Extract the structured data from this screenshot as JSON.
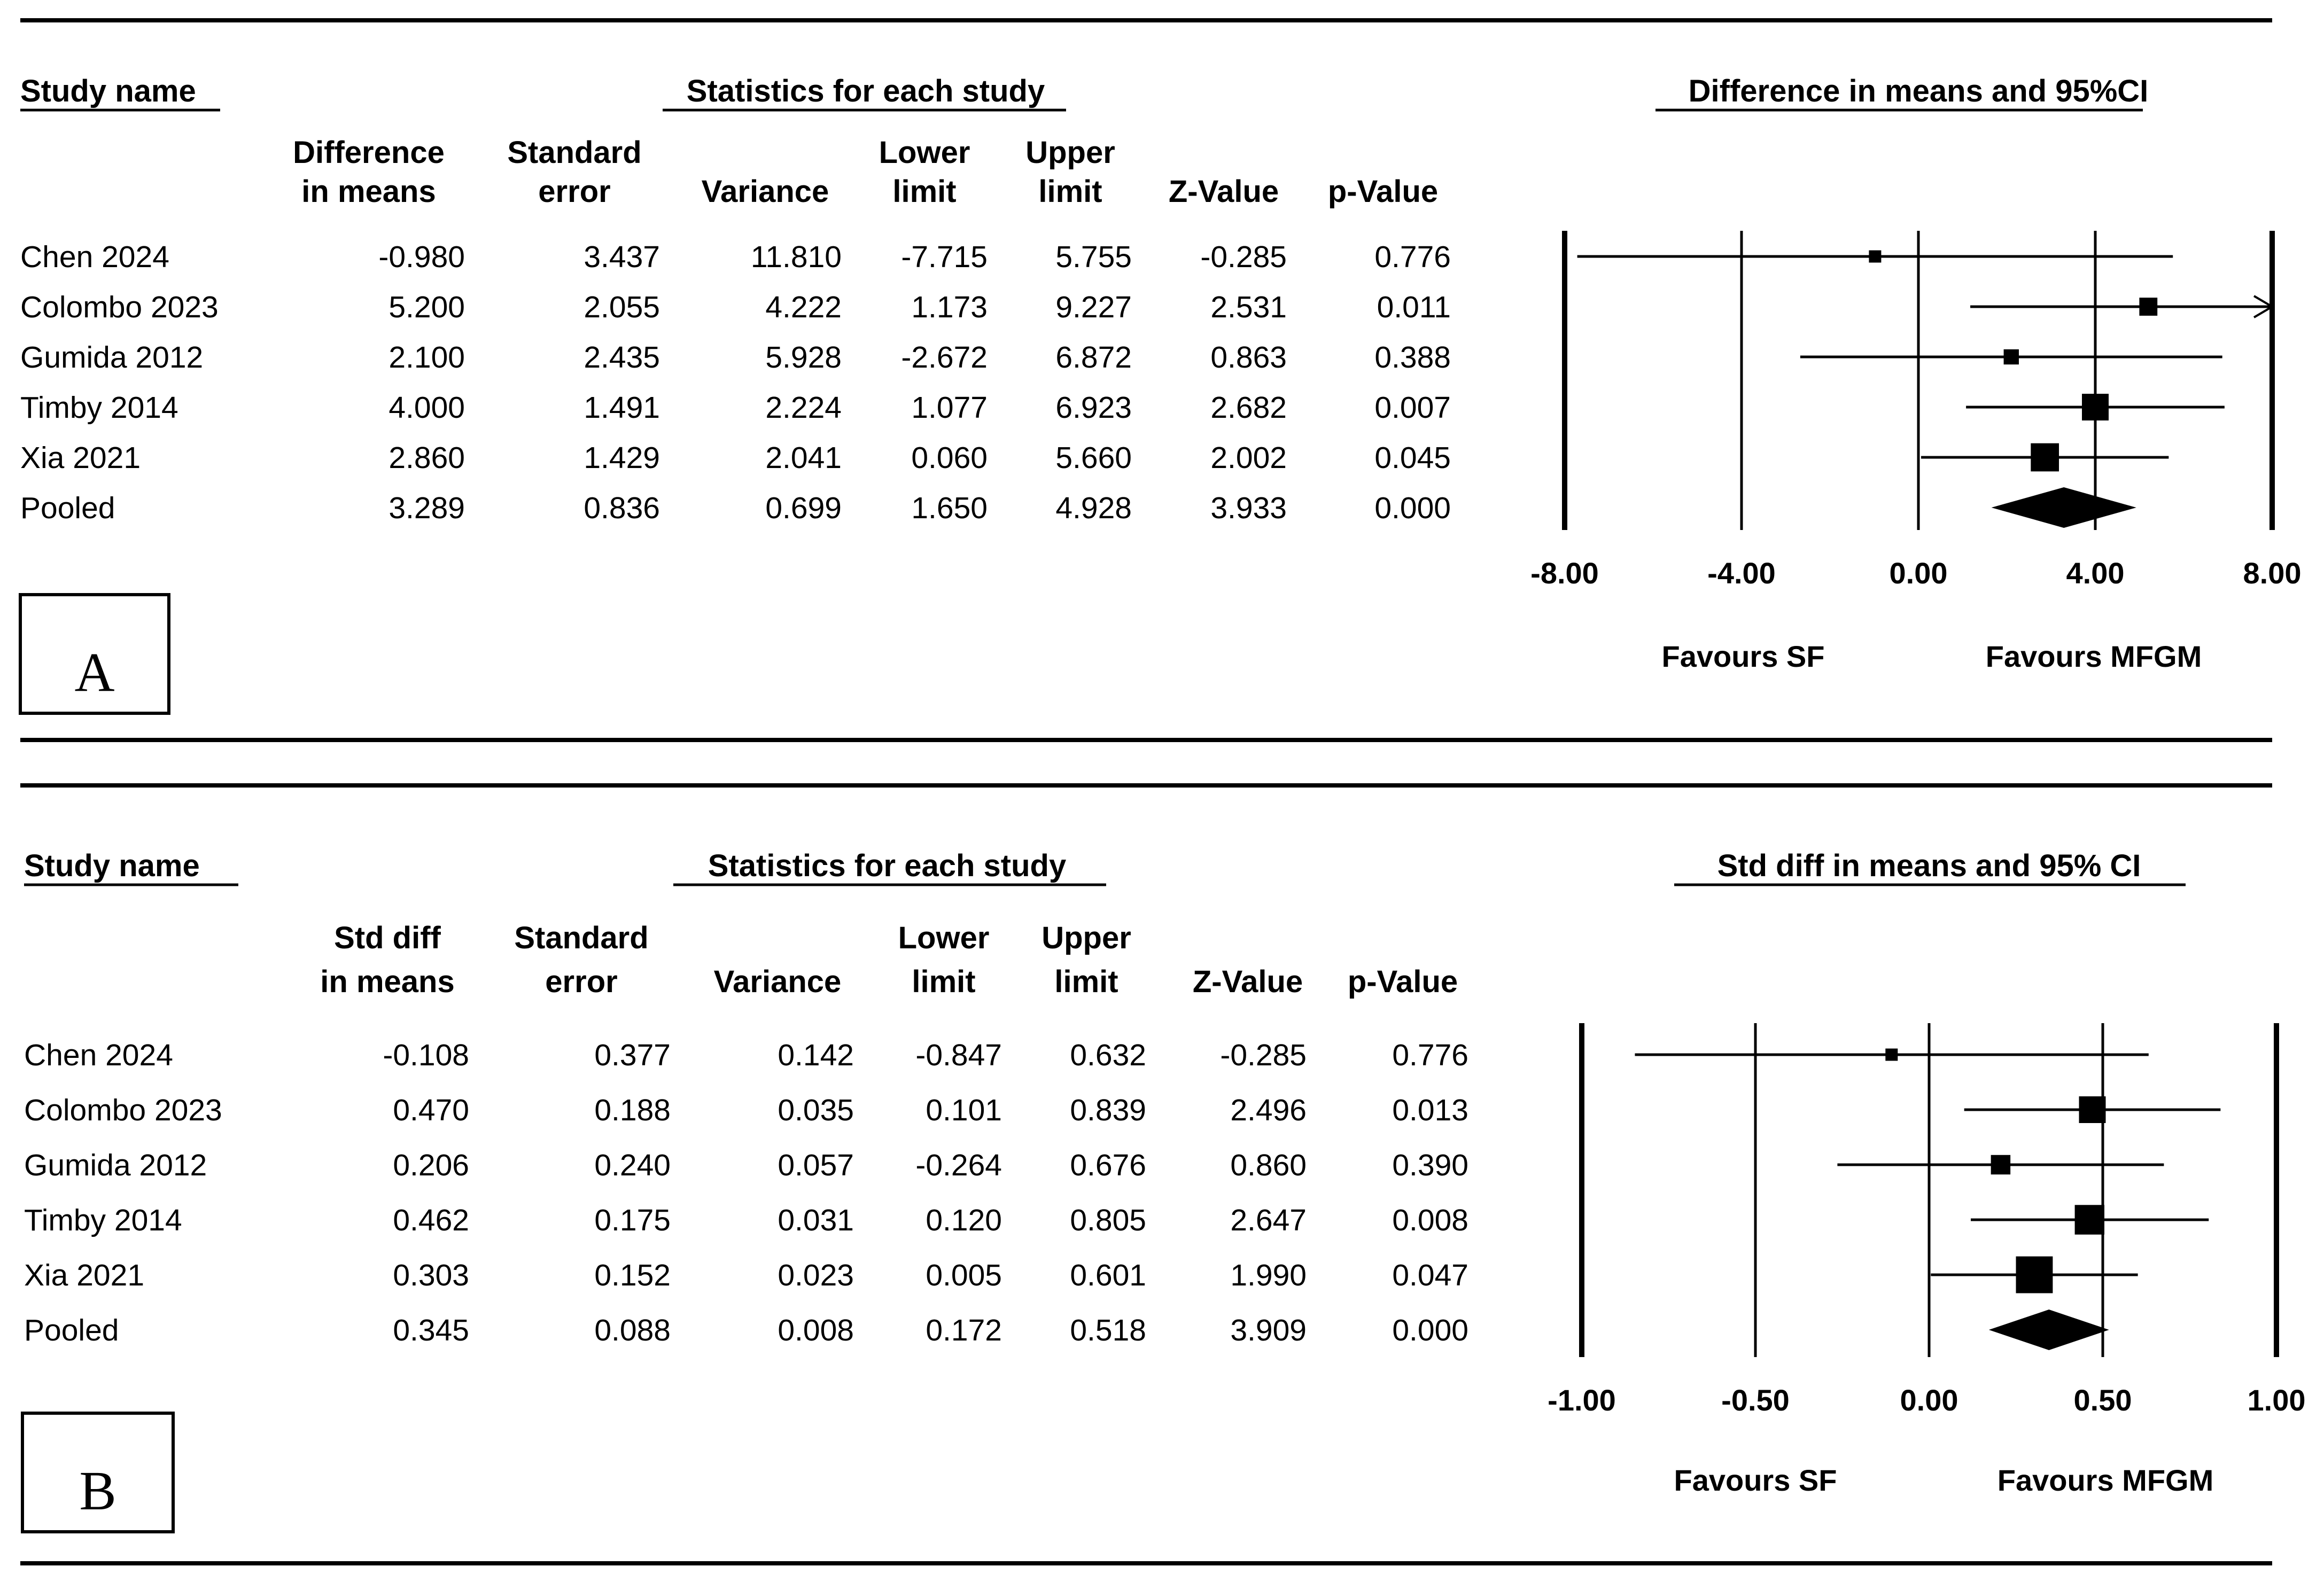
{
  "chart_data": [
    {
      "type": "table",
      "panel_label": "A",
      "title": "Difference in means and 95%CI",
      "headers": {
        "study_name": "Study name",
        "statistics": "Statistics for each study",
        "columns": [
          [
            "Difference",
            "in means"
          ],
          [
            "Standard",
            "error"
          ],
          [
            "",
            "Variance"
          ],
          [
            "Lower",
            "limit"
          ],
          [
            "Upper",
            "limit"
          ],
          [
            "",
            "Z-Value"
          ],
          [
            "",
            "p-Value"
          ]
        ]
      },
      "rows": [
        {
          "study": "Chen 2024",
          "cells": [
            "-0.980",
            "3.437",
            "11.810",
            "-7.715",
            "5.755",
            "-0.285",
            "0.776"
          ],
          "mean": -0.98,
          "lower": -7.715,
          "upper": 5.755,
          "weight": 1,
          "arrow": false
        },
        {
          "study": "Colombo 2023",
          "cells": [
            "5.200",
            "2.055",
            "4.222",
            "1.173",
            "9.227",
            "2.531",
            "0.011"
          ],
          "mean": 5.2,
          "lower": 1.173,
          "upper": 9.227,
          "weight": 2.2,
          "arrow": true
        },
        {
          "study": "Gumida 2012",
          "cells": [
            "2.100",
            "2.435",
            "5.928",
            "-2.672",
            "6.872",
            "0.863",
            "0.388"
          ],
          "mean": 2.1,
          "lower": -2.672,
          "upper": 6.872,
          "weight": 1.6,
          "arrow": false
        },
        {
          "study": "Timby 2014",
          "cells": [
            "4.000",
            "1.491",
            "2.224",
            "1.077",
            "6.923",
            "2.682",
            "0.007"
          ],
          "mean": 4.0,
          "lower": 1.077,
          "upper": 6.923,
          "weight": 4.0,
          "arrow": false
        },
        {
          "study": "Xia 2021",
          "cells": [
            "2.860",
            "1.429",
            "2.041",
            "0.060",
            "5.660",
            "2.002",
            "0.045"
          ],
          "mean": 2.86,
          "lower": 0.06,
          "upper": 5.66,
          "weight": 4.3,
          "arrow": false
        }
      ],
      "pooled": {
        "study": "Pooled",
        "cells": [
          "3.289",
          "0.836",
          "0.699",
          "1.650",
          "4.928",
          "3.933",
          "0.000"
        ],
        "mean": 3.289,
        "lower": 1.65,
        "upper": 4.928
      },
      "xlim": [
        -8,
        8
      ],
      "x_ticks": [
        -8,
        -4,
        0,
        4,
        8
      ],
      "x_tick_labels": [
        "-8.00",
        "-4.00",
        "0.00",
        "4.00",
        "8.00"
      ],
      "favours_left": "Favours SF",
      "favours_right": "Favours MFGM"
    },
    {
      "type": "table",
      "panel_label": "B",
      "title": "Std diff in means and 95% CI",
      "headers": {
        "study_name": "Study name",
        "statistics": "Statistics for each study",
        "columns": [
          [
            "Std diff",
            "in means"
          ],
          [
            "Standard",
            "error"
          ],
          [
            "",
            "Variance"
          ],
          [
            "Lower",
            "limit"
          ],
          [
            "Upper",
            "limit"
          ],
          [
            "",
            "Z-Value"
          ],
          [
            "",
            "p-Value"
          ]
        ]
      },
      "rows": [
        {
          "study": "Chen 2024",
          "cells": [
            "-0.108",
            "0.377",
            "0.142",
            "-0.847",
            "0.632",
            "-0.285",
            "0.776"
          ],
          "mean": -0.108,
          "lower": -0.847,
          "upper": 0.632,
          "weight": 1,
          "arrow": false
        },
        {
          "study": "Colombo 2023",
          "cells": [
            "0.470",
            "0.188",
            "0.035",
            "0.101",
            "0.839",
            "2.496",
            "0.013"
          ],
          "mean": 0.47,
          "lower": 0.101,
          "upper": 0.839,
          "weight": 4.0,
          "arrow": false
        },
        {
          "study": "Gumida 2012",
          "cells": [
            "0.206",
            "0.240",
            "0.057",
            "-0.264",
            "0.676",
            "0.860",
            "0.390"
          ],
          "mean": 0.206,
          "lower": -0.264,
          "upper": 0.676,
          "weight": 2.5,
          "arrow": false
        },
        {
          "study": "Timby 2014",
          "cells": [
            "0.462",
            "0.175",
            "0.031",
            "0.120",
            "0.805",
            "2.647",
            "0.008"
          ],
          "mean": 0.462,
          "lower": 0.12,
          "upper": 0.805,
          "weight": 4.6,
          "arrow": false
        },
        {
          "study": "Xia 2021",
          "cells": [
            "0.303",
            "0.152",
            "0.023",
            "0.005",
            "0.601",
            "1.990",
            "0.047"
          ],
          "mean": 0.303,
          "lower": 0.005,
          "upper": 0.601,
          "weight": 6.1,
          "arrow": false
        }
      ],
      "pooled": {
        "study": "Pooled",
        "cells": [
          "0.345",
          "0.088",
          "0.008",
          "0.172",
          "0.518",
          "3.909",
          "0.000"
        ],
        "mean": 0.345,
        "lower": 0.172,
        "upper": 0.518
      },
      "xlim": [
        -1,
        1
      ],
      "x_ticks": [
        -1,
        -0.5,
        0,
        0.5,
        1
      ],
      "x_tick_labels": [
        "-1.00",
        "-0.50",
        "0.00",
        "0.50",
        "1.00"
      ],
      "favours_left": "Favours SF",
      "favours_right": "Favours MFGM"
    }
  ]
}
